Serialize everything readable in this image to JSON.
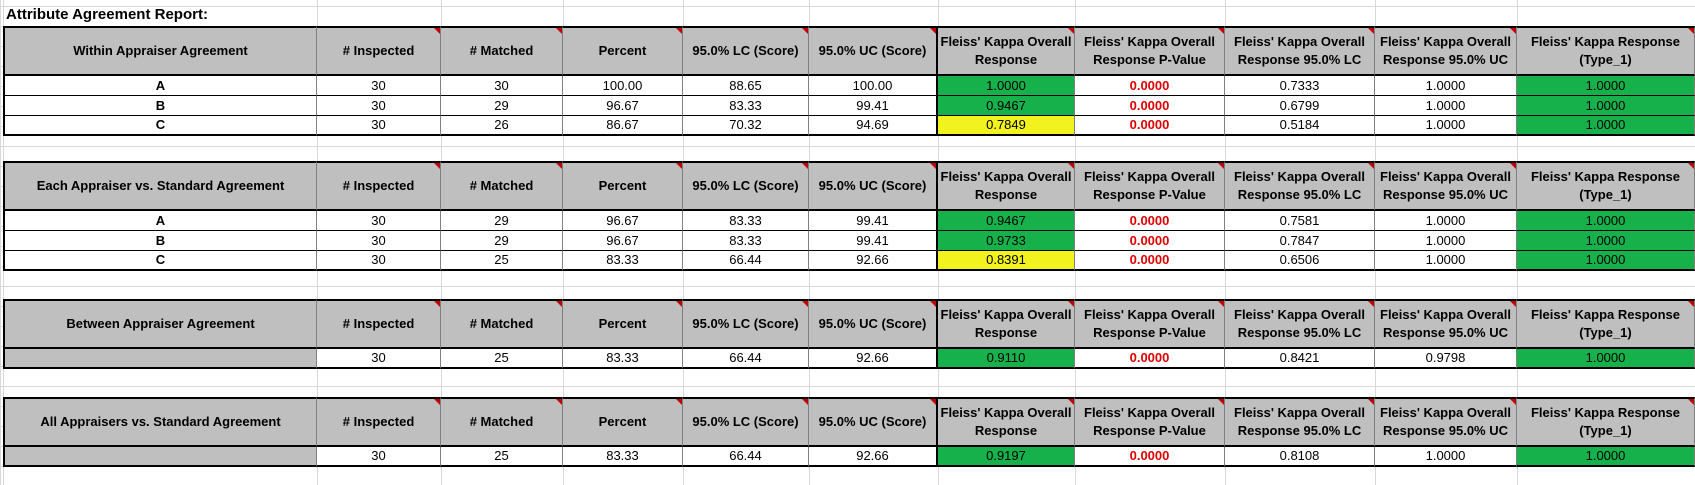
{
  "report_title": "Attribute Agreement Report:",
  "colors": {
    "header_bg": "#bfbfbf",
    "green": "#16b14a",
    "yellow": "#f2f21e",
    "red_text": "#e00000"
  },
  "columns": [
    "# Inspected",
    "# Matched",
    "Percent",
    "95.0% LC (Score)",
    "95.0% UC (Score)",
    "Fleiss' Kappa Overall Response",
    "Fleiss' Kappa Overall Response P-Value",
    "Fleiss' Kappa Overall Response 95.0% LC",
    "Fleiss' Kappa Overall Response 95.0% UC",
    "Fleiss' Kappa Response (Type_1)"
  ],
  "tables": [
    {
      "title": "Within Appraiser Agreement",
      "rows": [
        {
          "label": "A",
          "cells": [
            "30",
            "30",
            "100.00",
            "88.65",
            "100.00",
            "1.0000",
            "0.0000",
            "0.7333",
            "1.0000",
            "1.0000"
          ],
          "kappa_color": "green"
        },
        {
          "label": "B",
          "cells": [
            "30",
            "29",
            "96.67",
            "83.33",
            "99.41",
            "0.9467",
            "0.0000",
            "0.6799",
            "1.0000",
            "1.0000"
          ],
          "kappa_color": "green"
        },
        {
          "label": "C",
          "cells": [
            "30",
            "26",
            "86.67",
            "70.32",
            "94.69",
            "0.7849",
            "0.0000",
            "0.5184",
            "1.0000",
            "1.0000"
          ],
          "kappa_color": "yellow"
        }
      ]
    },
    {
      "title": "Each Appraiser vs. Standard Agreement",
      "rows": [
        {
          "label": "A",
          "cells": [
            "30",
            "29",
            "96.67",
            "83.33",
            "99.41",
            "0.9467",
            "0.0000",
            "0.7581",
            "1.0000",
            "1.0000"
          ],
          "kappa_color": "green"
        },
        {
          "label": "B",
          "cells": [
            "30",
            "29",
            "96.67",
            "83.33",
            "99.41",
            "0.9733",
            "0.0000",
            "0.7847",
            "1.0000",
            "1.0000"
          ],
          "kappa_color": "green"
        },
        {
          "label": "C",
          "cells": [
            "30",
            "25",
            "83.33",
            "66.44",
            "92.66",
            "0.8391",
            "0.0000",
            "0.6506",
            "1.0000",
            "1.0000"
          ],
          "kappa_color": "yellow"
        }
      ]
    },
    {
      "title": "Between Appraiser Agreement",
      "rows": [
        {
          "label": "",
          "cells": [
            "30",
            "25",
            "83.33",
            "66.44",
            "92.66",
            "0.9110",
            "0.0000",
            "0.8421",
            "0.9798",
            "1.0000"
          ],
          "kappa_color": "green"
        }
      ]
    },
    {
      "title": "All Appraisers vs. Standard Agreement",
      "rows": [
        {
          "label": "",
          "cells": [
            "30",
            "25",
            "83.33",
            "66.44",
            "92.66",
            "0.9197",
            "0.0000",
            "0.8108",
            "1.0000",
            "1.0000"
          ],
          "kappa_color": "green"
        }
      ]
    }
  ]
}
